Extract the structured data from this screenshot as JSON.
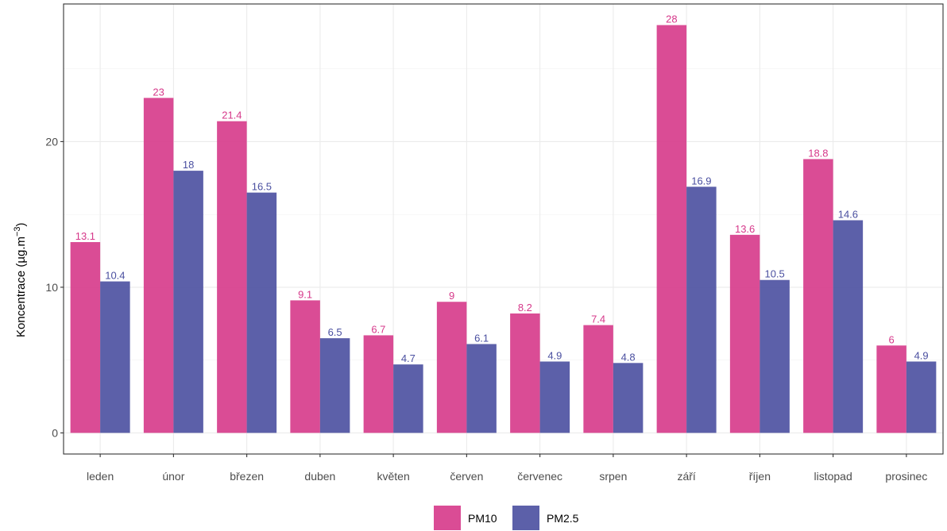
{
  "chart_data": {
    "type": "bar",
    "categories": [
      "leden",
      "únor",
      "březen",
      "duben",
      "květen",
      "červen",
      "červenec",
      "srpen",
      "září",
      "říjen",
      "listopad",
      "prosinec"
    ],
    "series": [
      {
        "name": "PM10",
        "color": "#d6388a",
        "values": [
          13.1,
          23,
          21.4,
          9.1,
          6.7,
          9,
          8.2,
          7.4,
          28,
          13.6,
          18.8,
          6
        ]
      },
      {
        "name": "PM2.5",
        "color": "#4a4fa0",
        "values": [
          10.4,
          18,
          16.5,
          6.5,
          4.7,
          6.1,
          4.9,
          4.8,
          16.9,
          10.5,
          14.6,
          4.9
        ]
      }
    ],
    "data_labels": [
      [
        "13.1",
        "23",
        "21.4",
        "9.1",
        "6.7",
        "9",
        "8.2",
        "7.4",
        "28",
        "13.6",
        "18.8",
        "6"
      ],
      [
        "10.4",
        "18",
        "16.5",
        "6.5",
        "4.7",
        "6.1",
        "4.9",
        "4.8",
        "16.9",
        "10.5",
        "14.6",
        "4.9"
      ]
    ],
    "ylabel": {
      "main": "Koncentrace (µg.m",
      "sup": "−3",
      "close": ")"
    },
    "yticks": [
      0,
      10,
      20
    ],
    "ytick_labels": [
      "0",
      "10",
      "20"
    ],
    "ylim": [
      -1.45,
      29.45
    ],
    "grid": true,
    "legend_position": "bottom",
    "legend_labels": [
      "PM10",
      "PM2.5"
    ]
  }
}
